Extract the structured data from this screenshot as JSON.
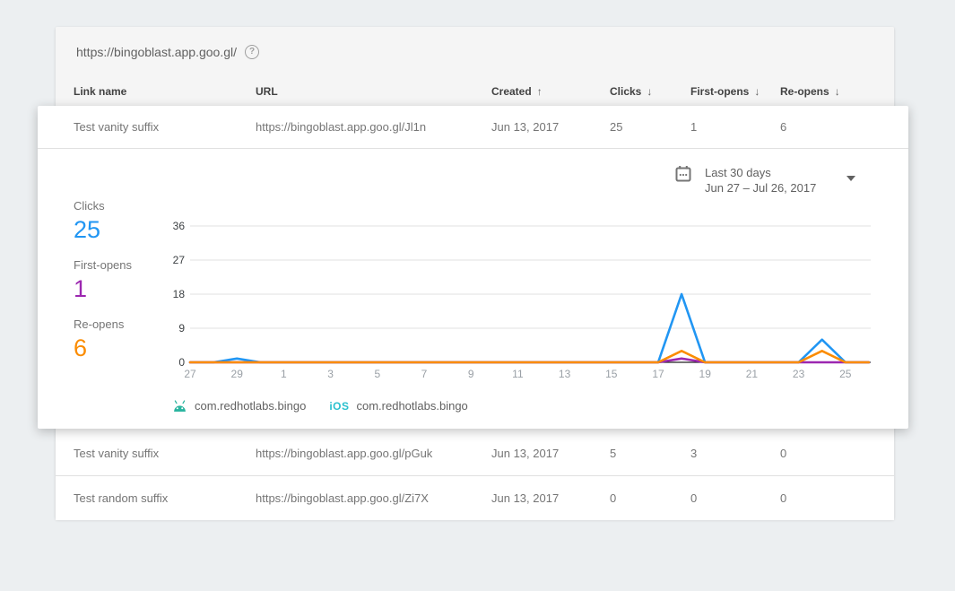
{
  "header": {
    "domain_url": "https://bingoblast.app.goo.gl/",
    "help_icon": "?"
  },
  "table": {
    "columns": [
      {
        "label": "Link name",
        "sort": ""
      },
      {
        "label": "URL",
        "sort": ""
      },
      {
        "label": "Created",
        "sort": "↑"
      },
      {
        "label": "Clicks",
        "sort": "↓"
      },
      {
        "label": "First-opens",
        "sort": "↓"
      },
      {
        "label": "Re-opens",
        "sort": "↓"
      }
    ],
    "rows": [
      {
        "name": "Test vanity suffix",
        "url": "https://bingoblast.app.goo.gl/Jl1n",
        "created": "Jun 13, 2017",
        "clicks": "25",
        "first_opens": "1",
        "re_opens": "6"
      },
      {
        "name": "Test vanity suffix",
        "url": "https://bingoblast.app.goo.gl/pGuk",
        "created": "Jun 13, 2017",
        "clicks": "5",
        "first_opens": "3",
        "re_opens": "0"
      },
      {
        "name": "Test random suffix",
        "url": "https://bingoblast.app.goo.gl/Zi7X",
        "created": "Jun 13, 2017",
        "clicks": "0",
        "first_opens": "0",
        "re_opens": "0"
      }
    ]
  },
  "panel": {
    "date_range": {
      "label": "Last 30 days",
      "range": "Jun 27 – Jul 26, 2017"
    },
    "stats": [
      {
        "label": "Clicks",
        "value": "25",
        "color": "#2196F3"
      },
      {
        "label": "First-opens",
        "value": "1",
        "color": "#9C27B0"
      },
      {
        "label": "Re-opens",
        "value": "6",
        "color": "#FB8C00"
      }
    ],
    "legend": [
      {
        "platform": "android",
        "label": "com.redhotlabs.bingo"
      },
      {
        "platform": "ios",
        "label": "com.redhotlabs.bingo"
      }
    ]
  },
  "chart_data": {
    "type": "line",
    "title": "Link analytics, last 30 days (Jun 27 – Jul 26, 2017)",
    "x_tick_labels": [
      "27",
      "29",
      "1",
      "3",
      "5",
      "7",
      "9",
      "11",
      "13",
      "15",
      "17",
      "19",
      "21",
      "23",
      "25"
    ],
    "x_points": 30,
    "x_tick_step_days": 2,
    "y_ticks": [
      0,
      9,
      18,
      27,
      36
    ],
    "ylim": [
      0,
      36
    ],
    "grid": true,
    "legend_position": "bottom",
    "series": [
      {
        "name": "Clicks",
        "color": "#2196F3",
        "values": [
          0,
          0,
          1,
          0,
          0,
          0,
          0,
          0,
          0,
          0,
          0,
          0,
          0,
          0,
          0,
          0,
          0,
          0,
          0,
          0,
          0,
          18,
          0,
          0,
          0,
          0,
          0,
          6,
          0,
          0
        ]
      },
      {
        "name": "First-opens",
        "color": "#9C27B0",
        "values": [
          0,
          0,
          0,
          0,
          0,
          0,
          0,
          0,
          0,
          0,
          0,
          0,
          0,
          0,
          0,
          0,
          0,
          0,
          0,
          0,
          0,
          1,
          0,
          0,
          0,
          0,
          0,
          0,
          0,
          0
        ]
      },
      {
        "name": "Re-opens",
        "color": "#FB8C00",
        "values": [
          0,
          0,
          0,
          0,
          0,
          0,
          0,
          0,
          0,
          0,
          0,
          0,
          0,
          0,
          0,
          0,
          0,
          0,
          0,
          0,
          0,
          3,
          0,
          0,
          0,
          0,
          0,
          3,
          0,
          0
        ]
      }
    ],
    "colors": {
      "axis_labels_y": "#3c4043",
      "axis_labels_x": "#9aa0a6",
      "gridline": "#e0e0e0",
      "baseline": "#212121"
    }
  }
}
